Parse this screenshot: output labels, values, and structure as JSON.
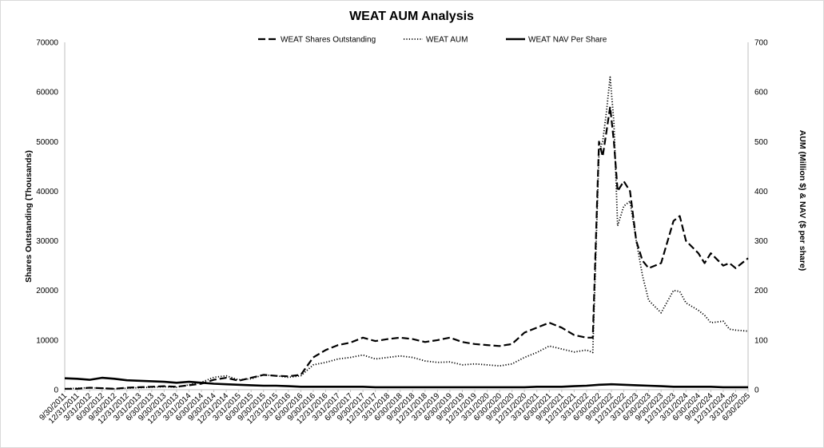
{
  "chart_data": {
    "type": "line",
    "title": "WEAT AUM Analysis",
    "ylabel_left": "Shares Outstanding (Thousands)",
    "ylabel_right": "AUM (Million $) & NAV ($ per share)",
    "ylim_left": [
      0,
      70000
    ],
    "ylim_right": [
      0,
      700
    ],
    "yticks_left": [
      "0",
      "10000",
      "20000",
      "30000",
      "40000",
      "50000",
      "60000",
      "70000"
    ],
    "yticks_right": [
      "0",
      "100",
      "200",
      "300",
      "400",
      "500",
      "600",
      "700"
    ],
    "grid": false,
    "legend_position": "top",
    "x_ticks": [
      "9/30/2011",
      "12/31/2011",
      "3/31/2012",
      "6/30/2012",
      "9/30/2012",
      "12/31/2012",
      "3/31/2013",
      "6/30/2013",
      "9/30/2013",
      "12/31/2013",
      "3/31/2014",
      "6/30/2014",
      "9/30/2014",
      "12/31/2014",
      "3/31/2015",
      "6/30/2015",
      "9/30/2015",
      "12/31/2015",
      "3/31/2016",
      "6/30/2016",
      "9/30/2016",
      "12/31/2016",
      "3/31/2017",
      "6/30/2017",
      "9/30/2017",
      "12/31/2017",
      "3/31/2018",
      "6/30/2018",
      "9/30/2018",
      "12/31/2018",
      "3/31/2019",
      "6/30/2019",
      "9/30/2019",
      "12/31/2019",
      "3/31/2020",
      "6/30/2020",
      "9/30/2020",
      "12/31/2020",
      "3/31/2021",
      "6/30/2021",
      "9/30/2021",
      "12/31/2021",
      "3/31/2022",
      "6/30/2022",
      "9/30/2022",
      "12/31/2022",
      "3/31/2023",
      "6/30/2023",
      "9/30/2023",
      "12/31/2023",
      "3/31/2024",
      "6/30/2024",
      "9/30/2024",
      "12/31/2024",
      "3/31/2025",
      "6/30/2025"
    ],
    "series": [
      {
        "name": "WEAT Shares Outstanding",
        "axis": "left",
        "style": "dashed",
        "points": [
          [
            0,
            200
          ],
          [
            1,
            200
          ],
          [
            2,
            400
          ],
          [
            3,
            300
          ],
          [
            4,
            200
          ],
          [
            5,
            400
          ],
          [
            6,
            500
          ],
          [
            7,
            600
          ],
          [
            8,
            700
          ],
          [
            9,
            600
          ],
          [
            10,
            900
          ],
          [
            11,
            1200
          ],
          [
            12,
            2000
          ],
          [
            13,
            2400
          ],
          [
            14,
            1800
          ],
          [
            15,
            2400
          ],
          [
            16,
            3000
          ],
          [
            17,
            2800
          ],
          [
            18,
            2700
          ],
          [
            19,
            3000
          ],
          [
            20,
            6500
          ],
          [
            21,
            8000
          ],
          [
            22,
            9000
          ],
          [
            23,
            9500
          ],
          [
            24,
            10500
          ],
          [
            25,
            9800
          ],
          [
            26,
            10200
          ],
          [
            27,
            10500
          ],
          [
            28,
            10200
          ],
          [
            29,
            9600
          ],
          [
            30,
            10000
          ],
          [
            31,
            10500
          ],
          [
            32,
            9600
          ],
          [
            33,
            9200
          ],
          [
            34,
            9000
          ],
          [
            35,
            8800
          ],
          [
            36,
            9200
          ],
          [
            37,
            11500
          ],
          [
            38,
            12500
          ],
          [
            39,
            13500
          ],
          [
            40,
            12500
          ],
          [
            41,
            11000
          ],
          [
            42,
            10500
          ],
          [
            42.5,
            10500
          ],
          [
            43,
            50000
          ],
          [
            43.3,
            47000
          ],
          [
            43.6,
            52000
          ],
          [
            43.9,
            57000
          ],
          [
            44.2,
            50000
          ],
          [
            44.5,
            40000
          ],
          [
            45,
            42000
          ],
          [
            45.5,
            40000
          ],
          [
            46,
            30000
          ],
          [
            46.5,
            26000
          ],
          [
            47,
            24500
          ],
          [
            48,
            25500
          ],
          [
            49,
            34000
          ],
          [
            49.5,
            35000
          ],
          [
            50,
            30000
          ],
          [
            51,
            27500
          ],
          [
            51.5,
            25500
          ],
          [
            52,
            27500
          ],
          [
            53,
            25000
          ],
          [
            53.5,
            25500
          ],
          [
            54,
            24500
          ],
          [
            55,
            26500
          ]
        ]
      },
      {
        "name": "WEAT AUM",
        "axis": "right",
        "style": "dotted",
        "points": [
          [
            0,
            2
          ],
          [
            1,
            3
          ],
          [
            2,
            4
          ],
          [
            3,
            3
          ],
          [
            4,
            2
          ],
          [
            5,
            3
          ],
          [
            6,
            4
          ],
          [
            7,
            5
          ],
          [
            8,
            6
          ],
          [
            9,
            5
          ],
          [
            10,
            10
          ],
          [
            11,
            15
          ],
          [
            12,
            25
          ],
          [
            13,
            28
          ],
          [
            14,
            20
          ],
          [
            15,
            22
          ],
          [
            16,
            30
          ],
          [
            17,
            28
          ],
          [
            18,
            25
          ],
          [
            19,
            28
          ],
          [
            20,
            50
          ],
          [
            21,
            55
          ],
          [
            22,
            62
          ],
          [
            23,
            65
          ],
          [
            24,
            70
          ],
          [
            25,
            62
          ],
          [
            26,
            65
          ],
          [
            27,
            68
          ],
          [
            28,
            65
          ],
          [
            29,
            58
          ],
          [
            30,
            55
          ],
          [
            31,
            56
          ],
          [
            32,
            50
          ],
          [
            33,
            52
          ],
          [
            34,
            50
          ],
          [
            35,
            48
          ],
          [
            36,
            52
          ],
          [
            37,
            65
          ],
          [
            38,
            75
          ],
          [
            39,
            88
          ],
          [
            40,
            82
          ],
          [
            41,
            76
          ],
          [
            42,
            80
          ],
          [
            42.5,
            75
          ],
          [
            43,
            480
          ],
          [
            43.3,
            500
          ],
          [
            43.6,
            560
          ],
          [
            43.9,
            630
          ],
          [
            44.2,
            540
          ],
          [
            44.5,
            330
          ],
          [
            45,
            370
          ],
          [
            45.5,
            380
          ],
          [
            46,
            300
          ],
          [
            46.5,
            230
          ],
          [
            47,
            180
          ],
          [
            48,
            155
          ],
          [
            49,
            200
          ],
          [
            49.5,
            198
          ],
          [
            50,
            175
          ],
          [
            51,
            160
          ],
          [
            51.5,
            150
          ],
          [
            52,
            135
          ],
          [
            53,
            138
          ],
          [
            53.5,
            122
          ],
          [
            54,
            120
          ],
          [
            55,
            118
          ]
        ]
      },
      {
        "name": "WEAT NAV Per Share",
        "axis": "right",
        "style": "solid",
        "points": [
          [
            0,
            23
          ],
          [
            1,
            22
          ],
          [
            2,
            20
          ],
          [
            3,
            24
          ],
          [
            4,
            22
          ],
          [
            5,
            19
          ],
          [
            6,
            18
          ],
          [
            7,
            17
          ],
          [
            8,
            16
          ],
          [
            9,
            14
          ],
          [
            10,
            16
          ],
          [
            11,
            14
          ],
          [
            12,
            12
          ],
          [
            13,
            11
          ],
          [
            14,
            10
          ],
          [
            15,
            9
          ],
          [
            16,
            8
          ],
          [
            17,
            8
          ],
          [
            18,
            7
          ],
          [
            19,
            6
          ],
          [
            20,
            6
          ],
          [
            21,
            6
          ],
          [
            22,
            6
          ],
          [
            23,
            6
          ],
          [
            24,
            6
          ],
          [
            25,
            5
          ],
          [
            26,
            5
          ],
          [
            27,
            5
          ],
          [
            28,
            5
          ],
          [
            29,
            5
          ],
          [
            30,
            5
          ],
          [
            31,
            5
          ],
          [
            32,
            5
          ],
          [
            33,
            5
          ],
          [
            34,
            5
          ],
          [
            35,
            5
          ],
          [
            36,
            5
          ],
          [
            37,
            5
          ],
          [
            38,
            6
          ],
          [
            39,
            6
          ],
          [
            40,
            6
          ],
          [
            41,
            7
          ],
          [
            42,
            8
          ],
          [
            43,
            10
          ],
          [
            44,
            11
          ],
          [
            45,
            10
          ],
          [
            46,
            9
          ],
          [
            47,
            8
          ],
          [
            48,
            7
          ],
          [
            49,
            6
          ],
          [
            50,
            6
          ],
          [
            51,
            6
          ],
          [
            52,
            6
          ],
          [
            53,
            5
          ],
          [
            54,
            5
          ],
          [
            55,
            5
          ]
        ]
      }
    ]
  }
}
